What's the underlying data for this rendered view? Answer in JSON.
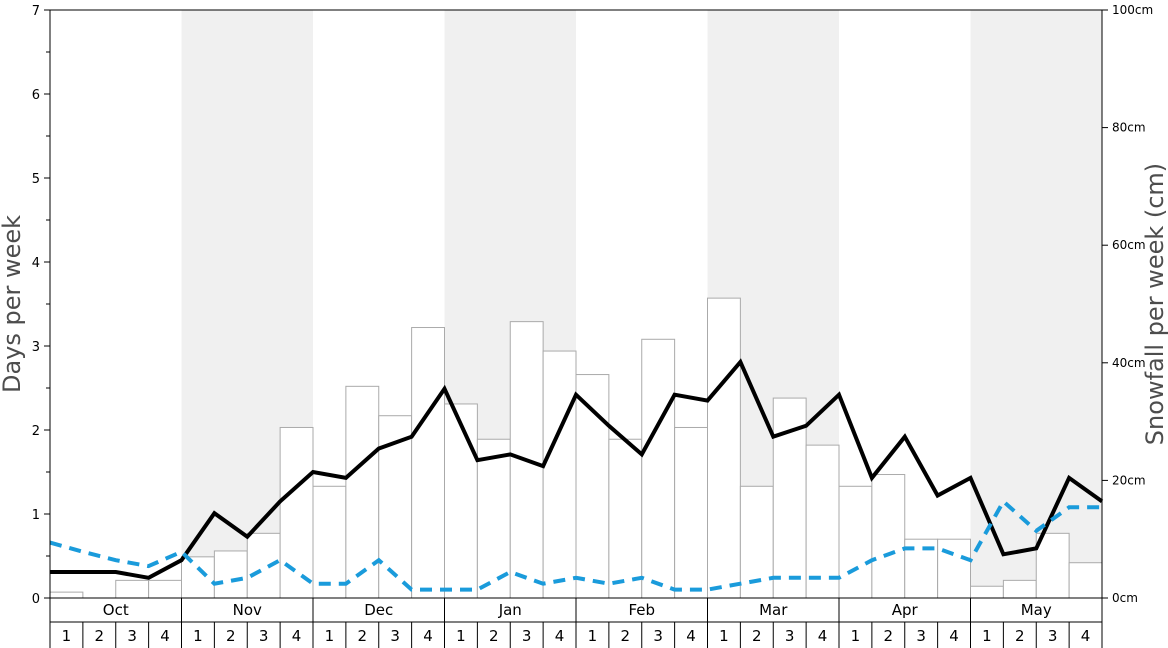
{
  "chart_data": {
    "type": "bar",
    "xlabel": "",
    "ylabel_left": "Days per week",
    "ylabel_right": "Snowfall per week (cm)",
    "ylim_left": [
      0,
      7
    ],
    "ylim_right": [
      0,
      100
    ],
    "left_ticks": [
      "0",
      "1",
      "2",
      "3",
      "4",
      "5",
      "6",
      "7"
    ],
    "right_ticks": [
      "0cm",
      "20cm",
      "40cm",
      "60cm",
      "80cm",
      "100cm"
    ],
    "months": [
      "Oct",
      "Nov",
      "Dec",
      "Jan",
      "Feb",
      "Mar",
      "Apr",
      "May"
    ],
    "weeks": [
      "1",
      "2",
      "3",
      "4"
    ],
    "colors": {
      "bars_fill": "#ffffff",
      "bars_stroke": "#aaaaaa",
      "shade": "#f0f0f0",
      "line_solid": "#000000",
      "line_dashed": "#1a9bdb"
    },
    "series": [
      {
        "kind": "bars",
        "axis": "right",
        "values": [
          1,
          0,
          3,
          3,
          7,
          8,
          11,
          29,
          19,
          36,
          31,
          46,
          33,
          27,
          47,
          42,
          38,
          27,
          44,
          29,
          51,
          19,
          34,
          26,
          19,
          21,
          10,
          10,
          2,
          3,
          11,
          6
        ]
      },
      {
        "kind": "line",
        "style": "solid",
        "axis": "left",
        "values": [
          0.31,
          0.31,
          0.31,
          0.24,
          0.45,
          1.01,
          0.73,
          1.15,
          1.5,
          1.43,
          1.78,
          1.92,
          2.49,
          1.64,
          1.71,
          1.57,
          2.42,
          2.05,
          1.71,
          2.42,
          2.35,
          2.81,
          1.92,
          2.05,
          2.42,
          1.43,
          1.92,
          1.22,
          1.43,
          0.52,
          0.59,
          1.43,
          1.15
        ]
      },
      {
        "kind": "line",
        "style": "dashed",
        "axis": "left",
        "values": [
          0.66,
          0.55,
          0.45,
          0.38,
          0.55,
          0.17,
          0.24,
          0.45,
          0.17,
          0.17,
          0.45,
          0.1,
          0.1,
          0.1,
          0.31,
          0.17,
          0.24,
          0.17,
          0.24,
          0.1,
          0.1,
          0.17,
          0.24,
          0.24,
          0.24,
          0.45,
          0.59,
          0.59,
          0.45,
          1.15,
          0.8,
          1.08,
          1.08
        ]
      }
    ]
  }
}
